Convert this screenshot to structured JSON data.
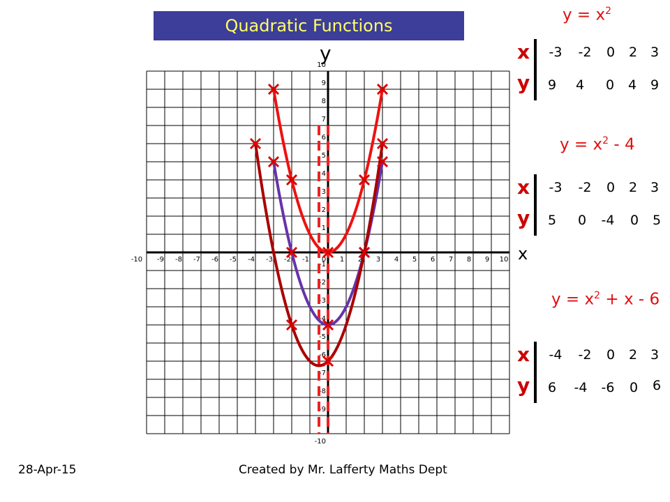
{
  "title": "Quadratic Functions",
  "axis_labels": {
    "y": "y",
    "x": "x"
  },
  "footer": {
    "date": "28-Apr-15",
    "credit": "Created by Mr. Lafferty Maths Dept"
  },
  "equations": [
    {
      "text": "y = x",
      "sup": "2",
      "suffix": ""
    },
    {
      "text": "y = x",
      "sup": "2",
      "suffix": " - 4"
    },
    {
      "text": "y = x",
      "sup": "2",
      "suffix": " + x - 6"
    }
  ],
  "tables": [
    {
      "x_label": "x",
      "y_label": "y",
      "x": [
        "-3",
        "-2",
        "0",
        "2",
        "3"
      ],
      "y": [
        "9",
        "4",
        "0",
        "4",
        "9"
      ]
    },
    {
      "x_label": "x",
      "y_label": "y",
      "x": [
        "-3",
        "-2",
        "0",
        "2",
        "3"
      ],
      "y": [
        "5",
        "0",
        "-4",
        "0",
        "5"
      ]
    },
    {
      "x_label": "x",
      "y_label": "y",
      "x": [
        "-4",
        "-2",
        "0",
        "2",
        "3"
      ],
      "y": [
        "6",
        "-4",
        "-6",
        "0",
        "6"
      ]
    }
  ],
  "colors": {
    "banner_bg": "#3d3d9a",
    "banner_text": "#ffff66",
    "curve1": "#ee1111",
    "curve2": "#6633aa",
    "curve3": "#aa0000",
    "marker": "#dd0000",
    "symmetry": "#ee2222",
    "equation": "#e01010"
  },
  "chart_data": {
    "type": "line",
    "xlim": [
      -10,
      10
    ],
    "ylim": [
      -10,
      10
    ],
    "grid": true,
    "x_ticks": [
      "-10",
      "-9",
      "-8",
      "-7",
      "-6",
      "-5",
      "-4",
      "-3",
      "-2",
      "-1",
      "0",
      "1",
      "2",
      "3",
      "4",
      "5",
      "6",
      "7",
      "8",
      "9",
      "10"
    ],
    "y_ticks": [
      "10",
      "9",
      "8",
      "7",
      "6",
      "5",
      "4",
      "3",
      "2",
      "1",
      "-1",
      "-2",
      "-3",
      "-4",
      "-5",
      "-6",
      "-7",
      "-8",
      "-9",
      "-10"
    ],
    "series": [
      {
        "name": "y = x2",
        "x": [
          -3,
          -2,
          0,
          2,
          3
        ],
        "y": [
          9,
          4,
          0,
          4,
          9
        ],
        "x_range": [
          -3,
          3
        ],
        "coef": [
          1,
          0,
          0
        ]
      },
      {
        "name": "y = x2 - 4",
        "x": [
          -3,
          -2,
          0,
          2,
          3
        ],
        "y": [
          5,
          0,
          -4,
          0,
          5
        ],
        "x_range": [
          -3,
          3
        ],
        "coef": [
          1,
          0,
          -4
        ]
      },
      {
        "name": "y = x2 + x - 6",
        "x": [
          -4,
          -2,
          0,
          2,
          3
        ],
        "y": [
          6,
          -4,
          -6,
          0,
          6
        ],
        "x_range": [
          -4,
          3
        ],
        "coef": [
          1,
          1,
          -6
        ]
      }
    ],
    "symmetry_lines": [
      0,
      -0.5
    ]
  }
}
